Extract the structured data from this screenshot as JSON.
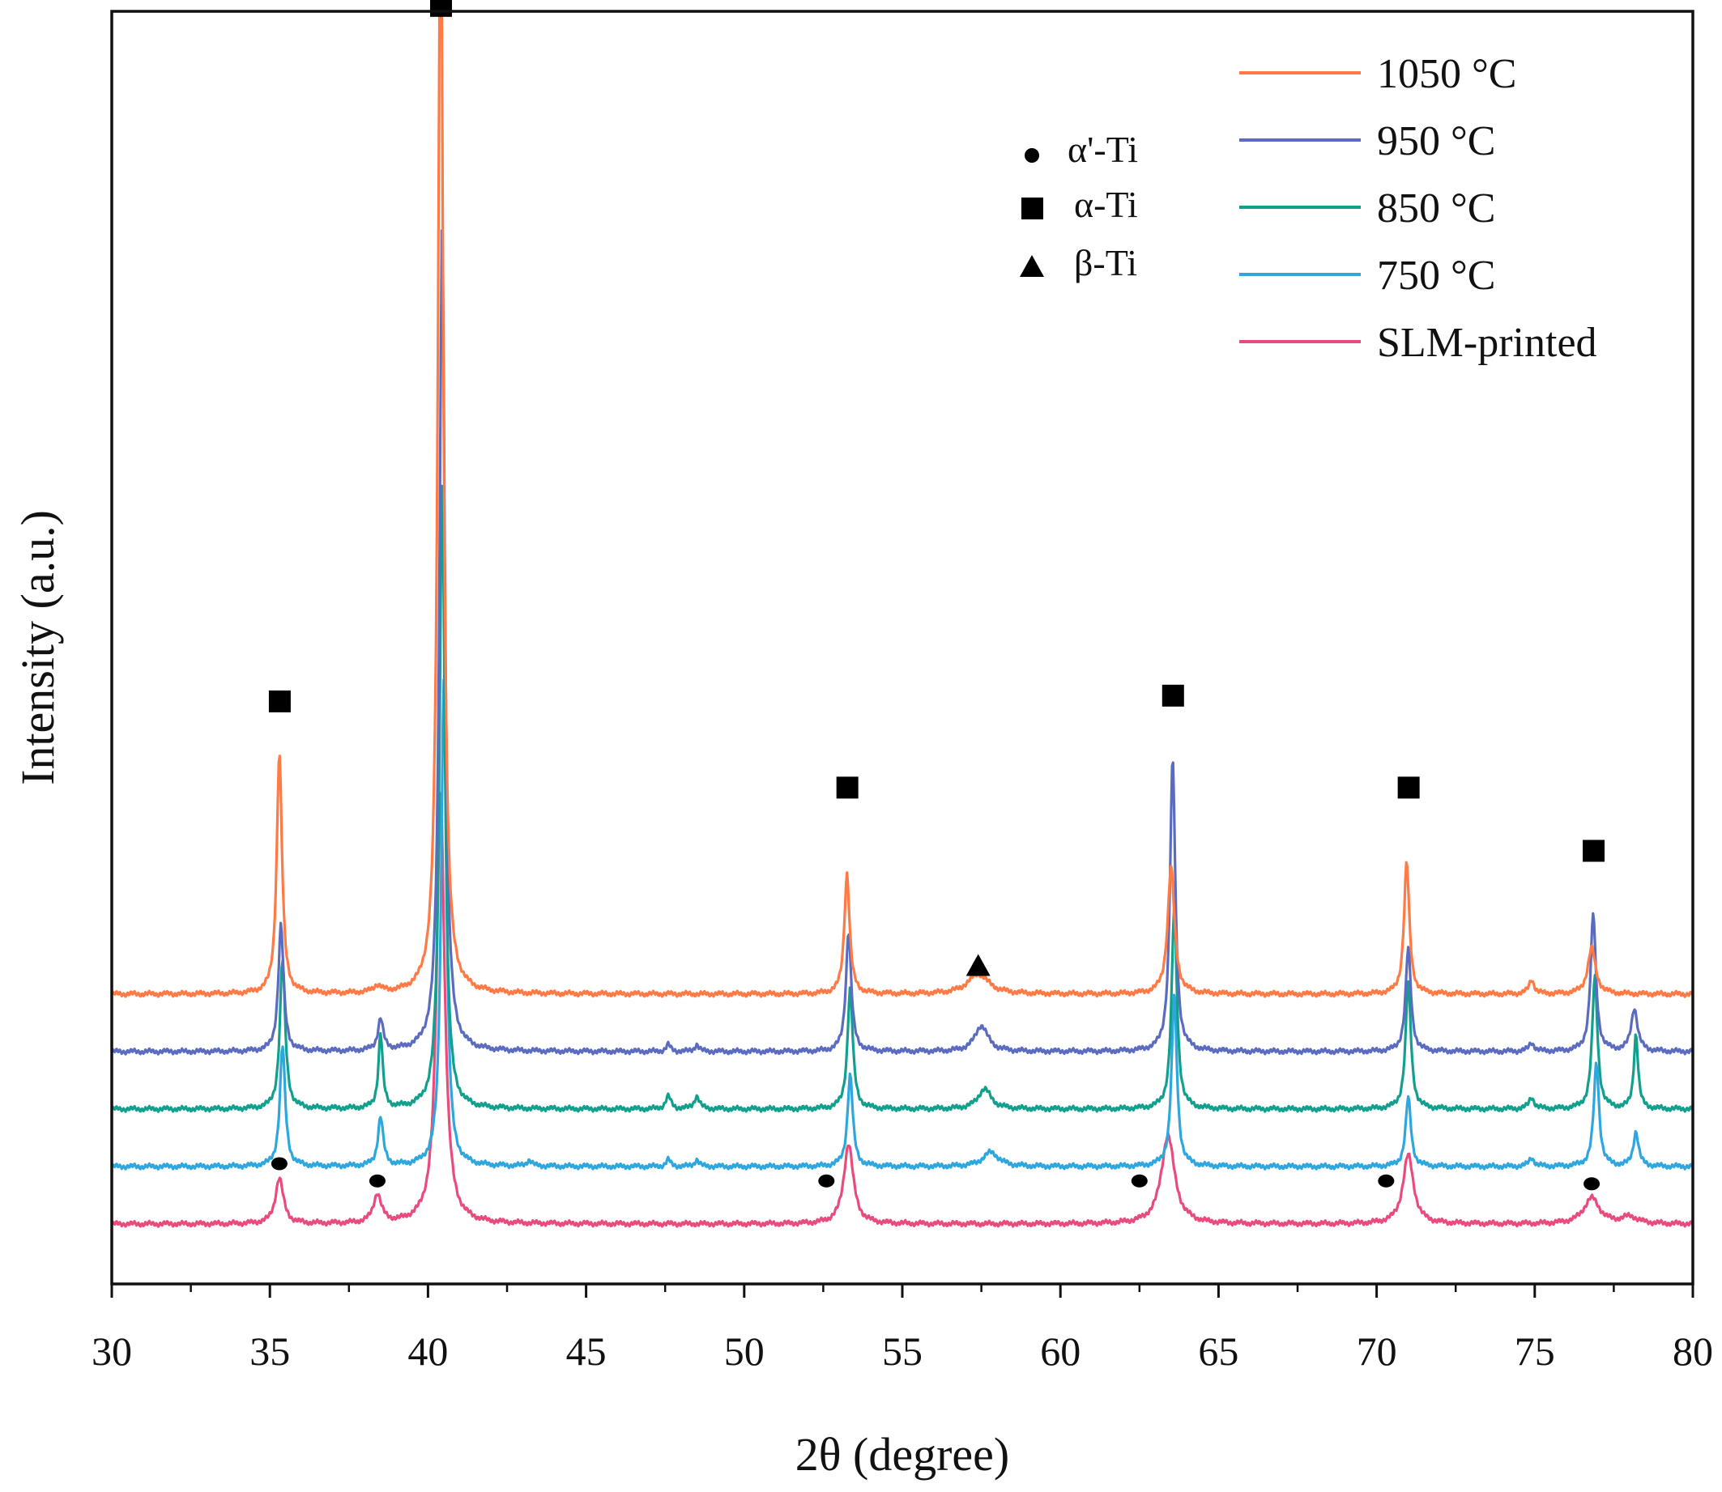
{
  "chart_data": {
    "type": "line",
    "title": "",
    "xlabel": "2θ (degree)",
    "ylabel": "Intensity (a.u.)",
    "xlim": [
      30,
      80
    ],
    "x_ticks": [
      "30",
      "35",
      "40",
      "45",
      "50",
      "55",
      "60",
      "65",
      "70",
      "75",
      "80"
    ],
    "y_ticks": [],
    "grid": false,
    "legend_position": "top-right",
    "series": [
      {
        "name": "1050 °C",
        "color": "#ff7a45",
        "offset": 4,
        "peaks": [
          [
            35.3,
            4.2,
            0.1
          ],
          [
            38.4,
            0.12,
            0.15
          ],
          [
            40.4,
            19.5,
            0.1
          ],
          [
            53.25,
            2.1,
            0.1
          ],
          [
            57.4,
            0.35,
            0.4
          ],
          [
            63.5,
            2.2,
            0.13
          ],
          [
            70.95,
            2.3,
            0.1
          ],
          [
            74.9,
            0.25,
            0.1
          ],
          [
            76.8,
            0.8,
            0.15
          ]
        ]
      },
      {
        "name": "950 °C",
        "color": "#5b6cc0",
        "offset": 3,
        "peaks": [
          [
            35.35,
            2.2,
            0.1
          ],
          [
            38.5,
            0.55,
            0.1
          ],
          [
            40.45,
            14.5,
            0.1
          ],
          [
            47.6,
            0.12,
            0.08
          ],
          [
            48.5,
            0.12,
            0.08
          ],
          [
            53.3,
            2.1,
            0.1
          ],
          [
            57.5,
            0.45,
            0.25
          ],
          [
            63.55,
            5.1,
            0.1
          ],
          [
            71.0,
            1.8,
            0.1
          ],
          [
            74.9,
            0.15,
            0.1
          ],
          [
            76.85,
            2.4,
            0.1
          ],
          [
            78.15,
            0.75,
            0.12
          ]
        ]
      },
      {
        "name": "850 °C",
        "color": "#12a08e",
        "offset": 2,
        "peaks": [
          [
            35.4,
            2.6,
            0.1
          ],
          [
            38.5,
            1.3,
            0.08
          ],
          [
            40.45,
            11.0,
            0.1
          ],
          [
            47.6,
            0.22,
            0.1
          ],
          [
            48.5,
            0.22,
            0.1
          ],
          [
            53.35,
            2.1,
            0.1
          ],
          [
            57.6,
            0.35,
            0.25
          ],
          [
            63.6,
            3.5,
            0.1
          ],
          [
            71.0,
            2.2,
            0.1
          ],
          [
            74.9,
            0.2,
            0.1
          ],
          [
            76.9,
            2.3,
            0.1
          ],
          [
            78.2,
            1.3,
            0.08
          ]
        ]
      },
      {
        "name": "750 °C",
        "color": "#2ea6de",
        "offset": 1,
        "peaks": [
          [
            35.4,
            2.1,
            0.1
          ],
          [
            38.5,
            0.85,
            0.1
          ],
          [
            40.5,
            8.5,
            0.1
          ],
          [
            43.2,
            0.1,
            0.1
          ],
          [
            47.6,
            0.12,
            0.08
          ],
          [
            48.5,
            0.12,
            0.08
          ],
          [
            53.35,
            1.6,
            0.1
          ],
          [
            57.8,
            0.25,
            0.3
          ],
          [
            63.6,
            3.0,
            0.1
          ],
          [
            71.0,
            1.2,
            0.1
          ],
          [
            74.9,
            0.15,
            0.1
          ],
          [
            76.95,
            1.8,
            0.1
          ],
          [
            78.2,
            0.6,
            0.1
          ]
        ]
      },
      {
        "name": "SLM-printed",
        "color": "#e94b7d",
        "offset": 0,
        "peaks": [
          [
            35.3,
            0.8,
            0.15
          ],
          [
            38.4,
            0.5,
            0.15
          ],
          [
            40.4,
            7.5,
            0.15
          ],
          [
            53.3,
            1.4,
            0.18
          ],
          [
            63.4,
            1.55,
            0.25
          ],
          [
            71.0,
            1.2,
            0.2
          ],
          [
            76.8,
            0.45,
            0.3
          ],
          [
            78.0,
            0.12,
            0.3
          ]
        ]
      }
    ],
    "phase_legend": [
      {
        "symbol": "circle",
        "label": "α'-Ti"
      },
      {
        "symbol": "square",
        "label": "α-Ti"
      },
      {
        "symbol": "triangle",
        "label": "β-Ti"
      }
    ],
    "markers": [
      {
        "symbol": "square",
        "x": 40.4,
        "y": 21.2
      },
      {
        "symbol": "square",
        "x": 35.3,
        "y": 9.1
      },
      {
        "symbol": "square",
        "x": 53.25,
        "y": 7.6
      },
      {
        "symbol": "square",
        "x": 63.55,
        "y": 9.2
      },
      {
        "symbol": "square",
        "x": 71.0,
        "y": 7.6
      },
      {
        "symbol": "square",
        "x": 76.85,
        "y": 6.5
      },
      {
        "symbol": "triangle",
        "x": 57.4,
        "y": 4.5
      },
      {
        "symbol": "circle",
        "x": 35.3,
        "y": 1.05
      },
      {
        "symbol": "circle",
        "x": 38.4,
        "y": 0.75
      },
      {
        "symbol": "circle",
        "x": 52.6,
        "y": 0.75
      },
      {
        "symbol": "circle",
        "x": 62.5,
        "y": 0.75
      },
      {
        "symbol": "circle",
        "x": 70.3,
        "y": 0.75
      },
      {
        "symbol": "circle",
        "x": 76.8,
        "y": 0.7
      }
    ]
  }
}
